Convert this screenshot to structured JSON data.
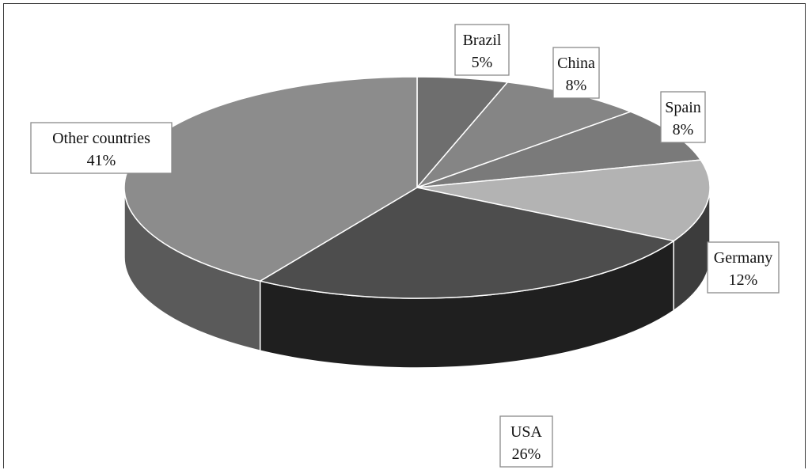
{
  "chart_data": {
    "type": "pie",
    "title": "",
    "slices": [
      {
        "label": "Brazil",
        "value": 5,
        "value_text": "5%",
        "top_color": "#6e6e6e",
        "side_color": "#4a4a4a"
      },
      {
        "label": "China",
        "value": 8,
        "value_text": "8%",
        "top_color": "#858585",
        "side_color": "#5c5c5c"
      },
      {
        "label": "Spain",
        "value": 8,
        "value_text": "8%",
        "top_color": "#7a7a7a",
        "side_color": "#555555"
      },
      {
        "label": "Germany",
        "value": 12,
        "value_text": "12%",
        "top_color": "#b3b3b3",
        "side_color": "#3c3c3c"
      },
      {
        "label": "USA",
        "value": 26,
        "value_text": "26%",
        "top_color": "#4d4d4d",
        "side_color": "#1f1f1f"
      },
      {
        "label": "Other countries",
        "value": 41,
        "value_text": "41%",
        "top_color": "#8c8c8c",
        "side_color": "#5a5a5a"
      }
    ],
    "style": "3d-pie",
    "legend": "none",
    "data_labels": "category-and-percent"
  }
}
